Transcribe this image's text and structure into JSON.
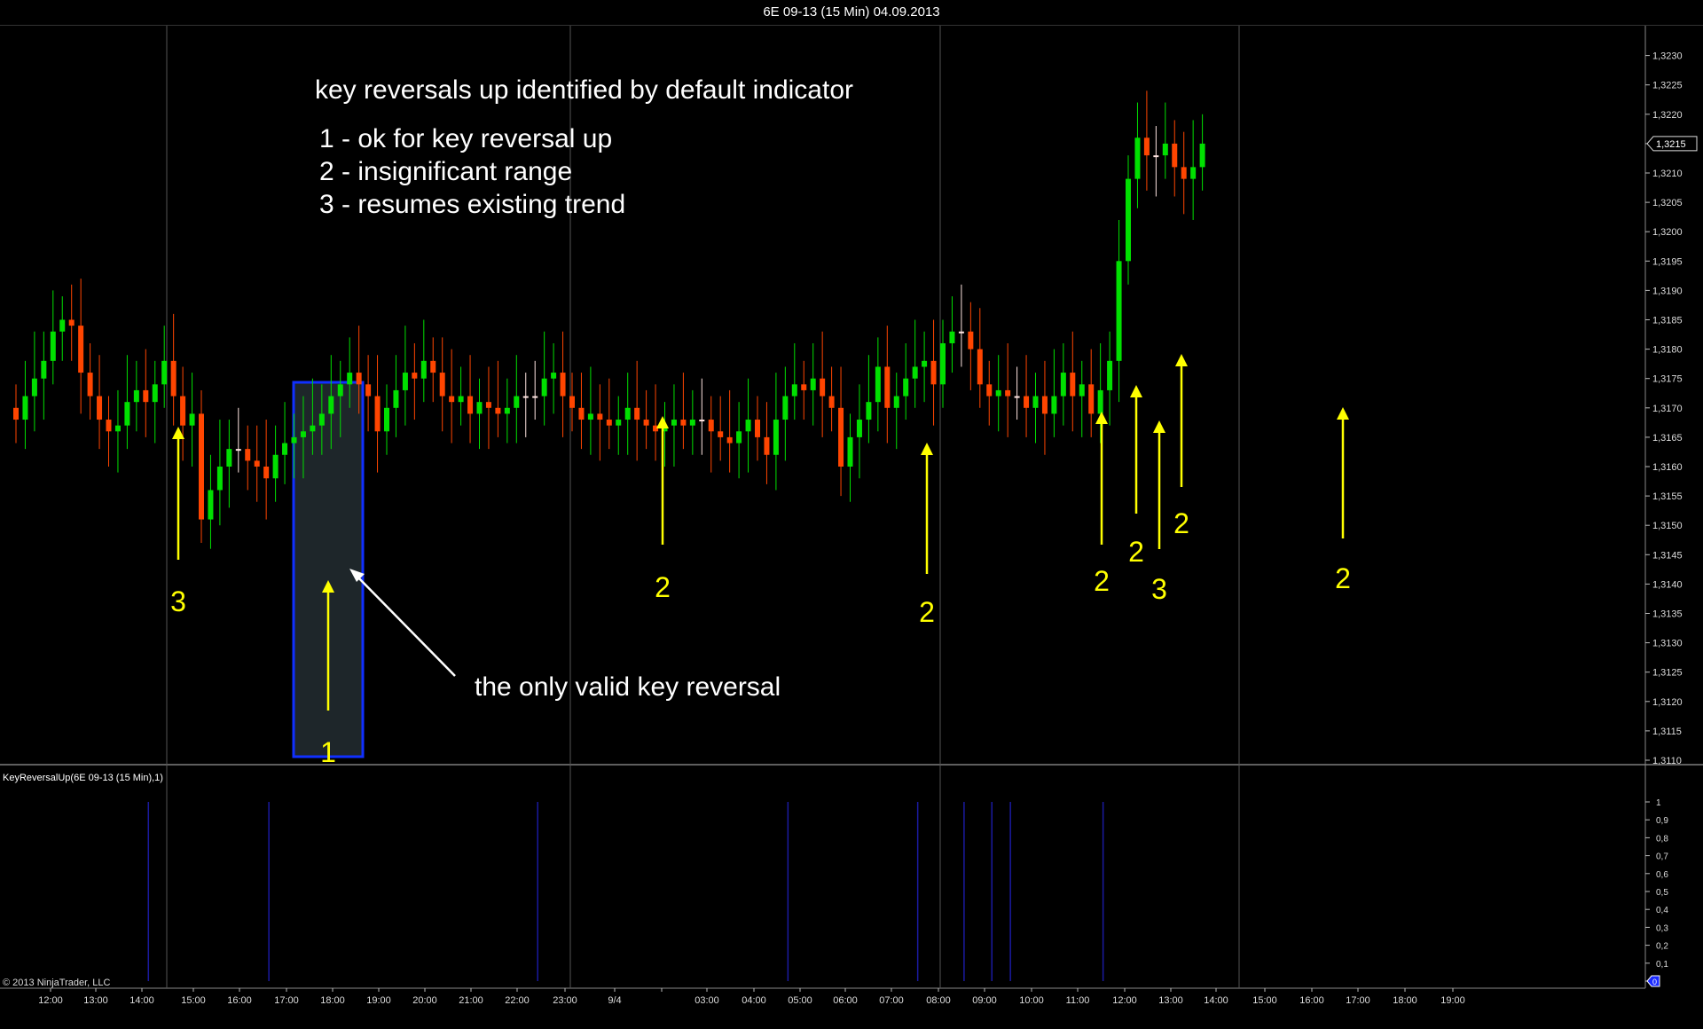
{
  "window": {
    "title": "6E 09-13 (15 Min)  04.09.2013"
  },
  "annotations": {
    "heading": "key reversals up identified by default indicator",
    "legend": [
      "1 - ok for key reversal up",
      "2 - insignificant range",
      "3 - resumes existing trend"
    ],
    "callout": "the only valid key reversal",
    "arrow_numbers": [
      "3",
      "1",
      "2",
      "2",
      "2",
      "2",
      "3",
      "2",
      "2"
    ]
  },
  "indicator": {
    "label": "KeyReversalUp(6E 09-13 (15 Min),1)"
  },
  "copyright": "© 2013 NinjaTrader, LLC",
  "price_marker": "1,3215",
  "indicator_marker": "0",
  "colors": {
    "background": "#000000",
    "up_candle": "#00e000",
    "down_candle": "#ff4500",
    "doji": "#ffe4e1",
    "annotation_arrow": "#ffff00",
    "highlight_border": "#1030ff",
    "indicator_line": "#1a1aa0",
    "session_line": "#555555"
  },
  "chart_data": [
    {
      "type": "candlestick",
      "title": "6E 09-13 (15 Min)  04.09.2013",
      "x_ticks": [
        "12:00",
        "13:00",
        "14:00",
        "15:00",
        "16:00",
        "17:00",
        "18:00",
        "19:00",
        "20:00",
        "21:00",
        "22:00",
        "23:00",
        "9/4",
        "03:00",
        "04:00",
        "05:00",
        "06:00",
        "07:00",
        "08:00",
        "09:00",
        "10:00",
        "11:00",
        "12:00",
        "13:00",
        "14:00",
        "15:00",
        "16:00",
        "17:00",
        "18:00",
        "19:00"
      ],
      "y_ticks": [
        "1,3110",
        "1,3115",
        "1,3120",
        "1,3125",
        "1,3130",
        "1,3135",
        "1,3140",
        "1,3145",
        "1,3150",
        "1,3155",
        "1,3160",
        "1,3165",
        "1,3170",
        "1,3175",
        "1,3180",
        "1,3185",
        "1,3190",
        "1,3195",
        "1,3200",
        "1,3205",
        "1,3210",
        "1,3215",
        "1,3220",
        "1,3225",
        "1,3230"
      ],
      "ylim": [
        1.3106,
        1.3232
      ],
      "closes": [
        1.3168,
        1.3172,
        1.3175,
        1.3178,
        1.3183,
        1.3185,
        1.3184,
        1.3176,
        1.3172,
        1.3168,
        1.3166,
        1.3167,
        1.3171,
        1.3173,
        1.3171,
        1.3174,
        1.3178,
        1.3172,
        1.3167,
        1.3169,
        1.3151,
        1.3156,
        1.316,
        1.3163,
        1.3163,
        1.3161,
        1.316,
        1.3158,
        1.3162,
        1.3164,
        1.3165,
        1.3166,
        1.3167,
        1.3169,
        1.3172,
        1.3174,
        1.3176,
        1.3174,
        1.3172,
        1.3166,
        1.317,
        1.3173,
        1.3176,
        1.3175,
        1.3178,
        1.3176,
        1.3172,
        1.3171,
        1.3172,
        1.3169,
        1.3171,
        1.317,
        1.3169,
        1.317,
        1.3172,
        1.3172,
        1.3172,
        1.3175,
        1.3176,
        1.3172,
        1.317,
        1.3168,
        1.3169,
        1.3168,
        1.3167,
        1.3168,
        1.317,
        1.3168,
        1.3167,
        1.3166,
        1.3167,
        1.3168,
        1.3167,
        1.3168,
        1.3168,
        1.3166,
        1.3165,
        1.3164,
        1.3166,
        1.3168,
        1.3165,
        1.3162,
        1.3168,
        1.3172,
        1.3174,
        1.3173,
        1.3175,
        1.3172,
        1.317,
        1.316,
        1.3165,
        1.3168,
        1.3171,
        1.3177,
        1.317,
        1.3172,
        1.3175,
        1.3177,
        1.3178,
        1.3174,
        1.3181,
        1.3183,
        1.3183,
        1.318,
        1.3174,
        1.3172,
        1.3173,
        1.3172,
        1.3172,
        1.317,
        1.3172,
        1.3169,
        1.3172,
        1.3176,
        1.3172,
        1.3174,
        1.3169,
        1.3173,
        1.3178,
        1.3195,
        1.3209,
        1.3216,
        1.3213,
        1.3213,
        1.3215,
        1.3211,
        1.3209,
        1.3211,
        1.3215
      ]
    },
    {
      "type": "bar",
      "title": "KeyReversalUp(6E 09-13 (15 Min),1)",
      "y_ticks": [
        "0",
        "0,1",
        "0,2",
        "0,3",
        "0,4",
        "0,5",
        "0,6",
        "0,7",
        "0,8",
        "0,9",
        "1"
      ],
      "ylim": [
        0,
        1
      ],
      "signal_bar_indices": [
        14,
        27,
        56,
        83,
        97,
        102,
        105,
        107,
        117
      ],
      "signal_values": [
        1,
        1,
        1,
        1,
        1,
        1,
        1,
        1,
        1
      ]
    }
  ]
}
